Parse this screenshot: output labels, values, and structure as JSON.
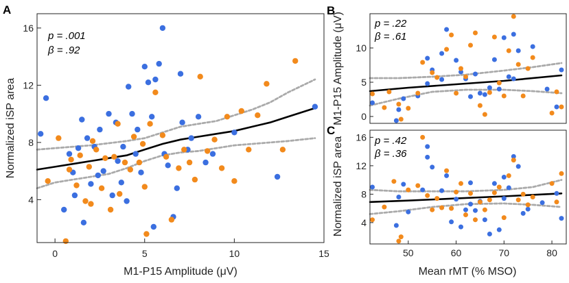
{
  "chart_data": [
    {
      "panel": "A",
      "type": "scatter",
      "xlabel": "M1-P15 Amplitude (μV)",
      "ylabel": "Normalized iSP area",
      "xlim": [
        -1,
        15
      ],
      "ylim": [
        1,
        17
      ],
      "xticks": [
        0,
        5,
        10,
        15
      ],
      "yticks": [
        4,
        8,
        12,
        16
      ],
      "stats": [
        "p = .001",
        "β = .92"
      ],
      "colors": {
        "blue": "#3b6fe0",
        "orange": "#f28a1c",
        "fit": "#000000",
        "ci": "#aaaaaa"
      },
      "fit_line": {
        "x": [
          -1,
          0,
          1,
          2,
          3,
          4,
          5,
          6,
          7,
          8,
          9,
          10,
          11,
          12,
          13,
          14.5
        ],
        "y": [
          6.1,
          6.3,
          6.5,
          6.7,
          6.9,
          7.1,
          7.5,
          7.9,
          8.2,
          8.4,
          8.6,
          8.8,
          9.1,
          9.4,
          9.8,
          10.4
        ]
      },
      "ci_upper": {
        "x": [
          -1,
          0,
          2,
          4,
          5,
          6,
          7,
          8,
          9,
          10,
          11,
          12,
          13,
          14.5
        ],
        "y": [
          7.5,
          7.6,
          7.8,
          8.1,
          8.3,
          8.7,
          9.1,
          9.3,
          9.5,
          9.9,
          10.3,
          10.8,
          11.5,
          12.4
        ]
      },
      "ci_lower": {
        "x": [
          -1,
          0,
          1,
          2,
          3,
          4,
          5,
          6,
          7,
          8,
          9,
          10,
          11,
          12,
          13,
          14.5
        ],
        "y": [
          4.8,
          5.2,
          5.4,
          5.6,
          5.8,
          6.2,
          6.7,
          7.1,
          7.3,
          7.4,
          7.6,
          7.8,
          7.9,
          8.0,
          8.1,
          8.3
        ]
      },
      "series": [
        {
          "name": "blue",
          "x": [
            -0.8,
            -0.5,
            0.5,
            0.8,
            1.0,
            1.1,
            1.3,
            1.5,
            1.6,
            1.8,
            2.0,
            2.2,
            2.4,
            2.5,
            2.7,
            3.0,
            3.2,
            3.4,
            3.5,
            3.7,
            3.8,
            4.0,
            4.1,
            4.3,
            4.5,
            4.6,
            4.8,
            5.0,
            5.2,
            5.4,
            5.6,
            5.8,
            6.0,
            6.1,
            6.3,
            6.6,
            6.8,
            7.0,
            7.1,
            7.4,
            7.6,
            8.0,
            8.4,
            8.8,
            10.0,
            12.4,
            14.5,
            5.5
          ],
          "y": [
            8.6,
            11.1,
            3.3,
            7.2,
            5.9,
            4.3,
            7.6,
            9.6,
            2.4,
            8.3,
            5.1,
            7.7,
            5.7,
            8.9,
            6.0,
            10.0,
            4.3,
            9.4,
            6.7,
            5.2,
            7.7,
            3.9,
            11.9,
            10.0,
            7.2,
            8.9,
            5.9,
            13.3,
            12.2,
            9.8,
            12.4,
            13.5,
            16.0,
            7.2,
            6.4,
            2.8,
            4.8,
            12.8,
            9.4,
            7.5,
            8.3,
            9.8,
            6.6,
            7.2,
            8.7,
            5.6,
            10.5,
            2.1
          ]
        },
        {
          "name": "orange",
          "x": [
            -0.4,
            0.2,
            0.6,
            0.9,
            1.2,
            1.4,
            1.7,
            1.9,
            2.1,
            2.3,
            2.6,
            2.8,
            3.1,
            3.3,
            3.6,
            3.9,
            4.2,
            4.4,
            4.7,
            4.9,
            5.1,
            5.3,
            5.6,
            6.0,
            6.2,
            6.5,
            6.9,
            7.2,
            7.5,
            7.8,
            8.1,
            8.5,
            8.9,
            9.3,
            9.6,
            10.0,
            10.4,
            10.8,
            11.3,
            11.8,
            12.7,
            13.4,
            0.8,
            2.0,
            3.5,
            5.0
          ],
          "y": [
            5.3,
            8.3,
            1.1,
            6.8,
            5.0,
            7.1,
            3.9,
            6.3,
            8.1,
            7.5,
            4.8,
            6.9,
            3.3,
            7.0,
            4.4,
            6.6,
            6.1,
            8.4,
            6.6,
            7.9,
            1.6,
            9.3,
            11.5,
            8.5,
            7.0,
            2.6,
            6.2,
            7.5,
            6.6,
            5.4,
            12.6,
            7.4,
            8.2,
            6.2,
            9.8,
            5.3,
            10.2,
            7.5,
            9.9,
            12.1,
            7.5,
            13.7,
            6.1,
            3.7,
            9.3,
            4.9
          ]
        }
      ]
    },
    {
      "panel": "B",
      "type": "scatter",
      "ylabel": "M1-P15 Amplitude (μV)",
      "xlim": [
        42,
        83
      ],
      "ylim": [
        -1,
        15
      ],
      "yticks": [
        0,
        5,
        10
      ],
      "stats": [
        "p = .22",
        "β = .61"
      ],
      "fit_line": {
        "x": [
          42,
          50,
          60,
          70,
          82
        ],
        "y": [
          3.7,
          4.2,
          4.7,
          5.2,
          6.0
        ]
      },
      "ci_upper": {
        "x": [
          42,
          48,
          55,
          62,
          70,
          76,
          82
        ],
        "y": [
          5.6,
          5.6,
          5.8,
          6.1,
          6.7,
          7.2,
          7.8
        ]
      },
      "ci_lower": {
        "x": [
          42,
          48,
          55,
          62,
          70,
          76,
          82
        ],
        "y": [
          1.6,
          2.6,
          3.6,
          3.9,
          3.9,
          3.7,
          3.4
        ]
      },
      "series": [
        {
          "name": "blue",
          "x": [
            42.5,
            47.5,
            48,
            49,
            52,
            54,
            55,
            57,
            58,
            60,
            61,
            62,
            64,
            65,
            66,
            67,
            68,
            70,
            71,
            72,
            73,
            76,
            79,
            81,
            82,
            54,
            57,
            63,
            69,
            72
          ],
          "y": [
            2.0,
            -0.6,
            1.0,
            2.6,
            3.0,
            8.5,
            6.8,
            9.2,
            12.7,
            8.2,
            6.5,
            5.5,
            6.2,
            3.4,
            3.2,
            4.2,
            8.3,
            11.5,
            5.8,
            5.5,
            9.6,
            10.2,
            4.0,
            1.4,
            6.8,
            4.8,
            5.4,
            2.9,
            4.0,
            12.0
          ]
        },
        {
          "name": "orange",
          "x": [
            42.5,
            45,
            48,
            48.5,
            50,
            52,
            53,
            55,
            56,
            58,
            59,
            60,
            61,
            63,
            64,
            65,
            66,
            67,
            68,
            69,
            70,
            71,
            72,
            73,
            74,
            75,
            76,
            80,
            81,
            82,
            46,
            62
          ],
          "y": [
            3.3,
            1.3,
            1.8,
            -0.4,
            1.2,
            3.4,
            7.9,
            6.4,
            5.7,
            9.8,
            11.9,
            3.4,
            7.0,
            10.4,
            12.2,
            1.6,
            0.3,
            3.5,
            11.6,
            4.9,
            3.0,
            9.6,
            14.6,
            7.6,
            3.0,
            7.0,
            8.6,
            0.5,
            3.6,
            1.4,
            3.6,
            5.8
          ]
        }
      ]
    },
    {
      "panel": "C",
      "type": "scatter",
      "xlabel": "Mean rMT (% MSO)",
      "ylabel": "Normalized iSP area",
      "xlim": [
        42,
        83
      ],
      "ylim": [
        1,
        17
      ],
      "xticks": [
        50,
        60,
        70,
        80
      ],
      "yticks": [
        4,
        8,
        12,
        16
      ],
      "stats": [
        "p = .42",
        "β = .36"
      ],
      "fit_line": {
        "x": [
          42,
          50,
          60,
          70,
          82
        ],
        "y": [
          6.9,
          7.1,
          7.4,
          7.7,
          8.1
        ]
      },
      "ci_upper": {
        "x": [
          42,
          48,
          55,
          62,
          70,
          76,
          82
        ],
        "y": [
          8.6,
          8.4,
          8.4,
          8.4,
          8.6,
          9.0,
          10.0
        ]
      },
      "ci_lower": {
        "x": [
          42,
          48,
          55,
          62,
          70,
          76,
          82
        ],
        "y": [
          5.2,
          5.6,
          6.2,
          6.6,
          6.7,
          6.5,
          6.2
        ]
      },
      "series": [
        {
          "name": "blue",
          "x": [
            42.5,
            47.5,
            48,
            49,
            50,
            53,
            54,
            55,
            57,
            58,
            59,
            60,
            61,
            62,
            63,
            64,
            65,
            66,
            67,
            68,
            69,
            70,
            71,
            72,
            73,
            74,
            75,
            78,
            81,
            82,
            54,
            63,
            70
          ],
          "y": [
            9.0,
            3.6,
            7.6,
            9.4,
            5.5,
            8.6,
            14.7,
            11.8,
            8.5,
            10.6,
            4.1,
            7.3,
            3.4,
            5.8,
            9.6,
            5.7,
            7.0,
            4.4,
            2.4,
            9.5,
            3.0,
            7.4,
            8.9,
            13.3,
            11.9,
            5.3,
            5.9,
            6.8,
            8.1,
            4.6,
            13.2,
            6.6,
            10.4
          ]
        },
        {
          "name": "orange",
          "x": [
            42.5,
            45,
            48,
            48.5,
            50,
            52,
            53,
            54,
            55,
            56,
            58,
            59,
            60,
            61,
            62,
            63,
            64,
            65,
            66,
            67,
            68,
            69,
            70,
            71,
            72,
            73,
            74,
            75,
            76,
            80,
            81,
            82,
            47,
            57
          ],
          "y": [
            4.4,
            6.2,
            1.4,
            2.0,
            8.6,
            9.2,
            16.0,
            7.8,
            5.8,
            7.4,
            11.3,
            6.0,
            8.3,
            9.5,
            5.1,
            8.1,
            4.4,
            6.9,
            5.8,
            7.2,
            8.2,
            9.0,
            4.7,
            10.6,
            12.8,
            7.2,
            8.0,
            6.5,
            7.6,
            9.5,
            6.9,
            10.9,
            9.8,
            6.1
          ]
        }
      ]
    }
  ]
}
